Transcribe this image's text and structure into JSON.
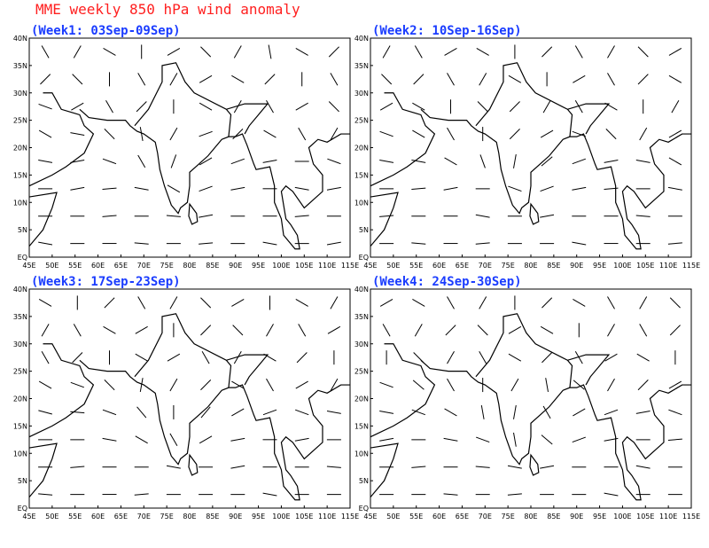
{
  "title": "MME weekly 850 hPa wind anomaly",
  "xlim": [
    45,
    115
  ],
  "ylim": [
    0,
    40
  ],
  "xticks": [
    {
      "value": 45,
      "label": "45E"
    },
    {
      "value": 50,
      "label": "50E"
    },
    {
      "value": 55,
      "label": "55E"
    },
    {
      "value": 60,
      "label": "60E"
    },
    {
      "value": 65,
      "label": "65E"
    },
    {
      "value": 70,
      "label": "70E"
    },
    {
      "value": 75,
      "label": "75E"
    },
    {
      "value": 80,
      "label": "80E"
    },
    {
      "value": 85,
      "label": "85E"
    },
    {
      "value": 90,
      "label": "90E"
    },
    {
      "value": 95,
      "label": "95E"
    },
    {
      "value": 100,
      "label": "100E"
    },
    {
      "value": 105,
      "label": "105E"
    },
    {
      "value": 110,
      "label": "110E"
    },
    {
      "value": 115,
      "label": "115E"
    }
  ],
  "yticks": [
    {
      "value": 0,
      "label": "EQ"
    },
    {
      "value": 5,
      "label": "5N"
    },
    {
      "value": 10,
      "label": "10N"
    },
    {
      "value": 15,
      "label": "15N"
    },
    {
      "value": 20,
      "label": "20N"
    },
    {
      "value": 25,
      "label": "25N"
    },
    {
      "value": 30,
      "label": "30N"
    },
    {
      "value": 35,
      "label": "35N"
    },
    {
      "value": 40,
      "label": "40N"
    }
  ],
  "panels": [
    {
      "title": "(Week1: 03Sep-09Sep)",
      "wind_direction": [
        [
          120,
          60,
          150,
          90,
          30,
          135,
          60,
          100,
          150,
          45
        ],
        [
          45,
          135,
          90,
          120,
          60,
          30,
          150,
          45,
          90,
          120
        ],
        [
          160,
          30,
          120,
          45,
          90,
          150,
          60,
          120,
          30,
          135
        ],
        [
          150,
          170,
          135,
          100,
          60,
          20,
          45,
          150,
          120,
          60
        ],
        [
          170,
          10,
          160,
          120,
          70,
          30,
          20,
          10,
          0,
          160
        ],
        [
          0,
          10,
          5,
          170,
          150,
          20,
          10,
          0,
          170,
          10
        ],
        [
          0,
          0,
          5,
          0,
          175,
          10,
          0,
          0,
          5,
          0
        ],
        [
          170,
          0,
          0,
          175,
          0,
          5,
          0,
          170,
          0,
          10
        ]
      ]
    },
    {
      "title": "(Week2: 10Sep-16Sep)",
      "wind_direction": [
        [
          60,
          120,
          30,
          150,
          90,
          45,
          120,
          60,
          135,
          30
        ],
        [
          135,
          45,
          120,
          60,
          150,
          90,
          30,
          120,
          45,
          150
        ],
        [
          30,
          150,
          90,
          135,
          45,
          60,
          120,
          150,
          90,
          60
        ],
        [
          160,
          150,
          120,
          90,
          45,
          30,
          160,
          135,
          60,
          30
        ],
        [
          170,
          170,
          150,
          110,
          80,
          40,
          20,
          10,
          170,
          150
        ],
        [
          0,
          5,
          10,
          0,
          160,
          20,
          10,
          5,
          0,
          170
        ],
        [
          5,
          0,
          0,
          170,
          0,
          10,
          0,
          0,
          175,
          0
        ],
        [
          0,
          175,
          0,
          5,
          0,
          0,
          170,
          0,
          0,
          5
        ]
      ]
    },
    {
      "title": "(Week3: 17Sep-23Sep)",
      "wind_direction": [
        [
          150,
          90,
          45,
          120,
          60,
          135,
          30,
          90,
          150,
          60
        ],
        [
          60,
          120,
          150,
          30,
          90,
          45,
          135,
          60,
          120,
          30
        ],
        [
          120,
          45,
          90,
          150,
          30,
          120,
          60,
          150,
          45,
          90
        ],
        [
          150,
          160,
          135,
          80,
          60,
          45,
          150,
          120,
          30,
          60
        ],
        [
          165,
          175,
          160,
          130,
          90,
          50,
          30,
          20,
          160,
          170
        ],
        [
          0,
          0,
          170,
          150,
          120,
          30,
          10,
          0,
          10,
          0
        ],
        [
          0,
          5,
          0,
          0,
          170,
          0,
          10,
          0,
          0,
          175
        ],
        [
          175,
          0,
          0,
          5,
          0,
          0,
          0,
          170,
          0,
          0
        ]
      ]
    },
    {
      "title": "(Week4: 24Sep-30Sep)",
      "wind_direction": [
        [
          30,
          150,
          120,
          60,
          90,
          45,
          150,
          120,
          60,
          135
        ],
        [
          120,
          60,
          45,
          135,
          30,
          150,
          90,
          60,
          120,
          45
        ],
        [
          90,
          135,
          60,
          120,
          150,
          45,
          120,
          30,
          150,
          90
        ],
        [
          160,
          140,
          120,
          90,
          60,
          100,
          140,
          60,
          45,
          30
        ],
        [
          170,
          160,
          150,
          100,
          80,
          120,
          30,
          20,
          10,
          160
        ],
        [
          10,
          0,
          170,
          160,
          100,
          140,
          20,
          10,
          0,
          5
        ],
        [
          0,
          5,
          0,
          175,
          170,
          10,
          0,
          0,
          170,
          0
        ],
        [
          0,
          0,
          175,
          0,
          5,
          0,
          0,
          170,
          0,
          0
        ]
      ]
    }
  ]
}
